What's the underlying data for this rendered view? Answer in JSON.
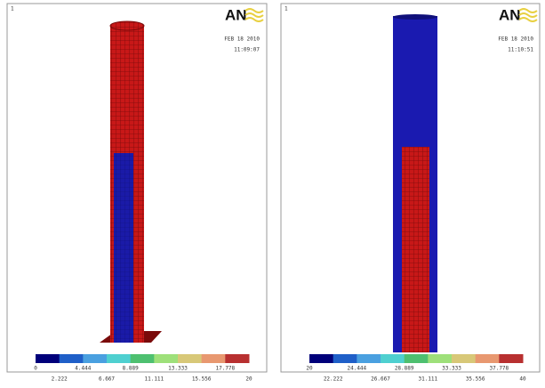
{
  "panels": [
    {
      "corner_mark": "1",
      "logo": "AN",
      "date": "FEB 18 2010",
      "time": "11:09:07",
      "legend": [
        "0",
        "2.222",
        "4.444",
        "6.667",
        "8.889",
        "11.111",
        "13.333",
        "15.556",
        "17.778",
        "20"
      ]
    },
    {
      "corner_mark": "1",
      "logo": "AN",
      "date": "FEB 18 2010",
      "time": "11:10:51",
      "legend": [
        "20",
        "22.222",
        "24.444",
        "26.667",
        "28.889",
        "31.111",
        "33.333",
        "35.556",
        "37.778",
        "40"
      ]
    }
  ]
}
